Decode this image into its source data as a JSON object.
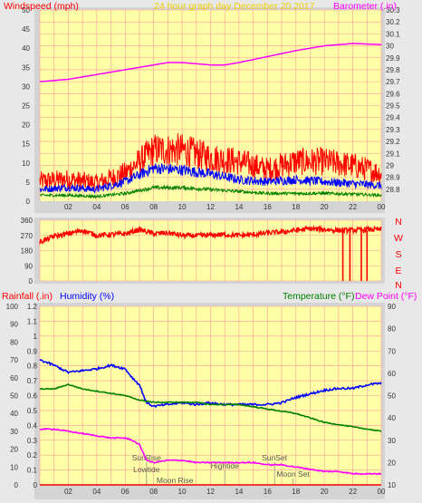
{
  "header": {
    "windspeed_label": "Windspeed (mph)",
    "title": "24 hour graph day   December 20 2017",
    "barometer_label": "Barometer (.in)"
  },
  "compass_labels": [
    "N",
    "W",
    "S",
    "E",
    "N"
  ],
  "bottom_header": {
    "rainfall_label": "Rainfall (.in)",
    "humidity_label": "Humidity (%)",
    "temperature_label": "Temperature (°F)",
    "dewpoint_label": "Dew Point (°F)"
  },
  "events": [
    {
      "label": "SunRise",
      "hour": 7.5
    },
    {
      "label": "Lowtide",
      "hour": 7.5
    },
    {
      "label": "Moon Rise",
      "hour": 9.5
    },
    {
      "label": "Hightide",
      "hour": 13.0
    },
    {
      "label": "SunSet",
      "hour": 16.5
    },
    {
      "label": "Moon Set",
      "hour": 17.8
    }
  ],
  "colors": {
    "plot_bg": "#ffffa8",
    "grid": "#ff9a9a",
    "frame": "#d4d4d4",
    "red": "#ff0000",
    "blue": "#0000ff",
    "green": "#008000",
    "magenta": "#ff00ff",
    "title_yellow": "#f0d000"
  },
  "chart_data": [
    {
      "type": "line",
      "title": "24 hour graph day   December 20 2017",
      "x_ticks": [
        "02",
        "04",
        "06",
        "08",
        "10",
        "12",
        "14",
        "16",
        "18",
        "20",
        "22",
        "00"
      ],
      "xlim": [
        0,
        24
      ],
      "grid": true,
      "left_axis": {
        "label": "Windspeed (mph)",
        "ylim": [
          0,
          50
        ],
        "ticks": [
          0,
          5,
          10,
          15,
          20,
          25,
          30,
          35,
          40,
          45,
          50
        ]
      },
      "right_axis": {
        "label": "Barometer (.in)",
        "ylim": [
          28.7,
          30.3
        ],
        "ticks": [
          "28.8",
          "28.9",
          "29",
          "29.1",
          "29.2",
          "29.3",
          "29.4",
          "29.5",
          "29.6",
          "29.7",
          "29.8",
          "29.9",
          "30",
          "30.1",
          "30.2",
          "30.3"
        ]
      },
      "series": [
        {
          "name": "Barometer",
          "axis": "right",
          "color": "#ff00ff",
          "x": [
            0,
            2,
            4,
            6,
            8,
            9,
            10,
            11,
            12,
            13,
            14,
            16,
            18,
            20,
            22,
            24
          ],
          "y": [
            29.7,
            29.72,
            29.76,
            29.8,
            29.84,
            29.86,
            29.86,
            29.85,
            29.84,
            29.84,
            29.86,
            29.91,
            29.96,
            30.0,
            30.02,
            30.01
          ]
        },
        {
          "name": "Wind gust",
          "axis": "left",
          "color": "#ff0000",
          "x": [
            0,
            2,
            4,
            6,
            8,
            10,
            12,
            14,
            16,
            18,
            20,
            22,
            24
          ],
          "y": [
            5.0,
            5.5,
            4.5,
            7.0,
            13.0,
            13.0,
            11.0,
            10.0,
            8.0,
            10.0,
            10.0,
            9.0,
            7.0
          ]
        },
        {
          "name": "Wind avg",
          "axis": "left",
          "color": "#0000ff",
          "x": [
            0,
            2,
            4,
            6,
            8,
            10,
            12,
            14,
            16,
            18,
            20,
            22,
            24
          ],
          "y": [
            3.0,
            3.5,
            3.0,
            5.0,
            8.5,
            8.0,
            7.0,
            5.5,
            5.0,
            5.5,
            5.0,
            4.5,
            4.0
          ]
        },
        {
          "name": "Wind min",
          "axis": "left",
          "color": "#008000",
          "x": [
            0,
            2,
            4,
            6,
            8,
            10,
            12,
            14,
            16,
            18,
            20,
            22,
            24
          ],
          "y": [
            1.5,
            1.5,
            1.2,
            2.0,
            3.5,
            3.5,
            3.0,
            2.5,
            2.0,
            2.0,
            2.0,
            1.8,
            1.5
          ]
        }
      ]
    },
    {
      "type": "line",
      "title": "",
      "x_ticks": [
        "02",
        "04",
        "06",
        "08",
        "10",
        "12",
        "14",
        "16",
        "18",
        "20",
        "22",
        "00"
      ],
      "xlim": [
        0,
        24
      ],
      "left_axis": {
        "label": "",
        "ylim": [
          0,
          360
        ],
        "ticks": [
          0,
          90,
          180,
          270,
          360
        ]
      },
      "right_axis": {
        "label": "",
        "ticks": [
          "N",
          "W",
          "S",
          "E",
          "N"
        ]
      },
      "series": [
        {
          "name": "Wind direction",
          "axis": "left",
          "color": "#ff0000",
          "x": [
            0,
            1,
            2,
            3,
            4,
            5,
            6,
            7,
            8,
            9,
            10,
            11,
            12,
            13,
            14,
            15,
            16,
            17,
            18,
            19,
            20,
            21,
            22,
            23,
            24
          ],
          "y": [
            230,
            265,
            280,
            300,
            270,
            275,
            280,
            305,
            280,
            285,
            270,
            268,
            272,
            275,
            270,
            275,
            285,
            290,
            300,
            310,
            305,
            300,
            300,
            305,
            305
          ]
        },
        {
          "name": "Wind direction dropouts",
          "axis": "left",
          "color": "#ff0000",
          "x": [
            21.3,
            21.8,
            22.6,
            23.0
          ],
          "y": [
            0,
            0,
            0,
            0
          ]
        }
      ]
    },
    {
      "type": "line",
      "title": "",
      "x_ticks": [
        "02",
        "04",
        "06",
        "08",
        "10",
        "12",
        "14",
        "16",
        "18",
        "20",
        "22",
        "00"
      ],
      "xlim": [
        0,
        24
      ],
      "left_axis": {
        "label": "Rainfall (.in)",
        "ylim": [
          0,
          1.2
        ],
        "ticks": [
          "0",
          "0.1",
          "0.2",
          "0.3",
          "0.4",
          "0.5",
          "0.6",
          "0.7",
          "0.8",
          "0.9",
          "1",
          "1.1",
          "1.2"
        ]
      },
      "humidity_axis": {
        "label": "Humidity (%)",
        "ylim": [
          0,
          100
        ],
        "ticks": [
          0,
          10,
          20,
          30,
          40,
          50,
          60,
          70,
          80,
          90,
          100
        ]
      },
      "right_axis": {
        "label": "Temperature (°F)",
        "ylim": [
          10,
          90
        ],
        "ticks": [
          10,
          20,
          30,
          40,
          50,
          60,
          70,
          80,
          90
        ]
      },
      "series": [
        {
          "name": "Humidity",
          "axis": "humidity",
          "color": "#0000ff",
          "x": [
            0,
            1,
            2,
            3,
            4,
            5,
            6,
            6.5,
            7,
            7.3,
            7.5,
            8,
            9,
            10,
            11,
            12,
            13,
            14,
            15,
            16,
            17,
            18,
            19,
            20,
            21,
            22,
            23,
            24
          ],
          "y": [
            70,
            67,
            63,
            64,
            65,
            67,
            65,
            60,
            56,
            50,
            46,
            44,
            45,
            46,
            45,
            46,
            45,
            45,
            45,
            45,
            46,
            49,
            51,
            53,
            54,
            54,
            56,
            57
          ]
        },
        {
          "name": "Temperature",
          "axis": "right",
          "color": "#008000",
          "x": [
            0,
            1,
            2,
            3,
            4,
            5,
            6,
            7,
            8,
            9,
            10,
            11,
            12,
            13,
            14,
            15,
            16,
            17,
            18,
            19,
            20,
            21,
            22,
            23,
            24
          ],
          "y": [
            53,
            53,
            55,
            53,
            52,
            51,
            50,
            48,
            47,
            47,
            47,
            47,
            46,
            46,
            46,
            45,
            44,
            43,
            42,
            40,
            38,
            37,
            36,
            35,
            34
          ]
        },
        {
          "name": "Dew Point",
          "axis": "right",
          "color": "#ff00ff",
          "x": [
            0,
            1,
            2,
            3,
            4,
            5,
            6,
            6.5,
            7,
            7.3,
            7.5,
            8,
            9,
            10,
            11,
            12,
            13,
            14,
            15,
            16,
            17,
            18,
            19,
            20,
            21,
            22,
            23,
            24
          ],
          "y": [
            35,
            35,
            34,
            33,
            32,
            31,
            31,
            30,
            28,
            24,
            21,
            20,
            21,
            21,
            20,
            20,
            20,
            20,
            20,
            19,
            19,
            18,
            17,
            16,
            16,
            15,
            15,
            15
          ]
        },
        {
          "name": "Rainfall",
          "axis": "left",
          "color": "#ff0000",
          "x": [
            0,
            24
          ],
          "y": [
            0,
            0
          ]
        }
      ]
    }
  ]
}
